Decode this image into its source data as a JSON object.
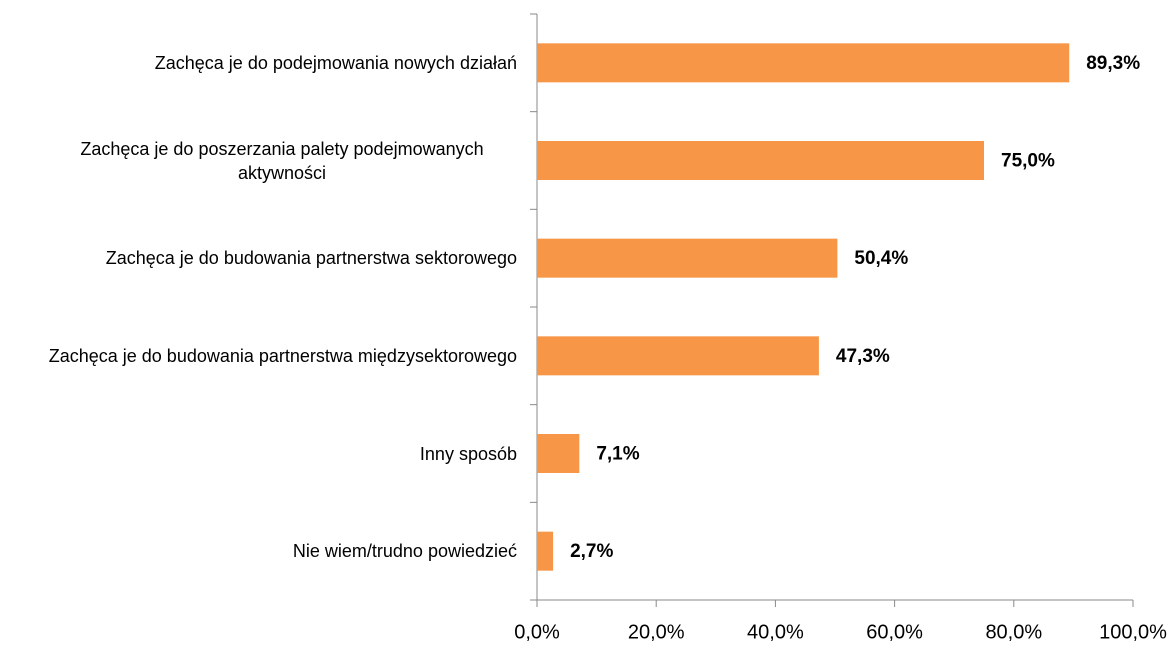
{
  "chart_data": {
    "type": "barh",
    "categories": [
      "Zachęca je do podejmowania nowych działań",
      "Zachęca je do poszerzania palety podejmowanych aktywności",
      "Zachęca je do budowania partnerstwa sektorowego",
      "Zachęca je do budowania partnerstwa międzysektorowego",
      "Inny sposób",
      "Nie wiem/trudno powiedzieć"
    ],
    "values": [
      89.3,
      75.0,
      50.4,
      47.3,
      7.1,
      2.7
    ],
    "value_labels": [
      "89,3%",
      "75,0%",
      "50,4%",
      "47,3%",
      "7,1%",
      "2,7%"
    ],
    "color": "#f79646",
    "xlim": [
      0,
      100
    ],
    "xticks": [
      {
        "value": 0,
        "label": "0,0%"
      },
      {
        "value": 20,
        "label": "20,0%"
      },
      {
        "value": 40,
        "label": "40,0%"
      },
      {
        "value": 60,
        "label": "60,0%"
      },
      {
        "value": 80,
        "label": "80,0%"
      },
      {
        "value": 100,
        "label": "100,0%"
      }
    ],
    "grid": false
  }
}
